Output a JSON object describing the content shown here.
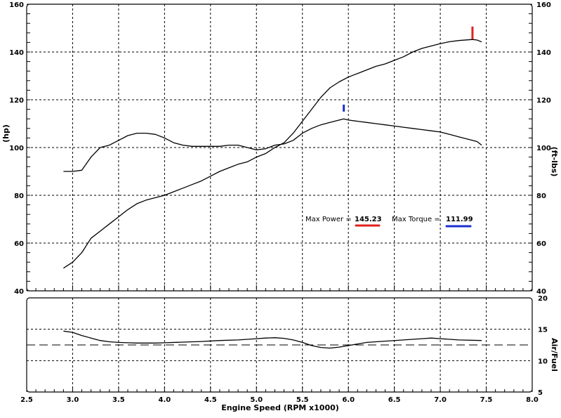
{
  "chart_data": [
    {
      "type": "line",
      "panel": "power-torque",
      "xlabel": "Engine Speed (RPM x1000)",
      "ylabel_left": "(hp)",
      "ylabel_right": "(ft-lbs)",
      "xlim": [
        2.5,
        8.0
      ],
      "ylim": [
        40,
        160
      ],
      "x_ticks": [
        "2.5",
        "3.0",
        "3.5",
        "4.0",
        "4.5",
        "5.0",
        "5.5",
        "6.0",
        "6.5",
        "7.0",
        "7.5",
        "8.0"
      ],
      "y_ticks_left": [
        "40",
        "60",
        "80",
        "100",
        "120",
        "140",
        "160"
      ],
      "y_ticks_right": [
        "40",
        "60",
        "80",
        "100",
        "120",
        "140",
        "160"
      ],
      "grid": true,
      "series": [
        {
          "key": "power",
          "units": "hp",
          "color": "#000000",
          "points": [
            [
              2.9,
              49.5
            ],
            [
              3.0,
              52
            ],
            [
              3.1,
              56
            ],
            [
              3.2,
              62
            ],
            [
              3.3,
              65
            ],
            [
              3.4,
              68
            ],
            [
              3.5,
              71
            ],
            [
              3.6,
              74
            ],
            [
              3.7,
              76.5
            ],
            [
              3.8,
              78
            ],
            [
              3.9,
              79
            ],
            [
              4.0,
              80
            ],
            [
              4.1,
              81.5
            ],
            [
              4.2,
              83
            ],
            [
              4.3,
              84.5
            ],
            [
              4.4,
              86
            ],
            [
              4.5,
              88
            ],
            [
              4.6,
              90
            ],
            [
              4.7,
              91.5
            ],
            [
              4.8,
              93
            ],
            [
              4.9,
              94
            ],
            [
              5.0,
              96
            ],
            [
              5.1,
              97.5
            ],
            [
              5.2,
              100
            ],
            [
              5.3,
              102
            ],
            [
              5.4,
              106
            ],
            [
              5.5,
              111
            ],
            [
              5.6,
              116
            ],
            [
              5.7,
              121
            ],
            [
              5.8,
              125
            ],
            [
              5.9,
              127.5
            ],
            [
              6.0,
              129.5
            ],
            [
              6.1,
              131
            ],
            [
              6.2,
              132.5
            ],
            [
              6.3,
              134
            ],
            [
              6.4,
              135
            ],
            [
              6.5,
              136.5
            ],
            [
              6.6,
              138
            ],
            [
              6.7,
              140
            ],
            [
              6.8,
              141.5
            ],
            [
              6.9,
              142.5
            ],
            [
              7.0,
              143.5
            ],
            [
              7.1,
              144.3
            ],
            [
              7.2,
              144.8
            ],
            [
              7.3,
              145.1
            ],
            [
              7.35,
              145.23
            ],
            [
              7.4,
              145
            ],
            [
              7.45,
              144.2
            ]
          ]
        },
        {
          "key": "torque",
          "units": "ft-lbs",
          "color": "#000000",
          "points": [
            [
              2.9,
              90
            ],
            [
              3.0,
              90
            ],
            [
              3.1,
              90.5
            ],
            [
              3.2,
              96
            ],
            [
              3.3,
              100
            ],
            [
              3.4,
              101
            ],
            [
              3.5,
              103
            ],
            [
              3.6,
              105
            ],
            [
              3.7,
              106
            ],
            [
              3.8,
              106
            ],
            [
              3.9,
              105.5
            ],
            [
              4.0,
              104
            ],
            [
              4.1,
              102
            ],
            [
              4.2,
              101
            ],
            [
              4.3,
              100.5
            ],
            [
              4.4,
              100.5
            ],
            [
              4.5,
              100.5
            ],
            [
              4.6,
              100.5
            ],
            [
              4.7,
              101
            ],
            [
              4.8,
              101
            ],
            [
              4.9,
              100
            ],
            [
              5.0,
              99
            ],
            [
              5.1,
              99.5
            ],
            [
              5.2,
              101
            ],
            [
              5.3,
              101.5
            ],
            [
              5.4,
              103
            ],
            [
              5.5,
              106
            ],
            [
              5.6,
              108
            ],
            [
              5.7,
              109.5
            ],
            [
              5.8,
              110.5
            ],
            [
              5.9,
              111.5
            ],
            [
              5.95,
              111.99
            ],
            [
              6.0,
              111.5
            ],
            [
              6.1,
              111
            ],
            [
              6.2,
              110.5
            ],
            [
              6.3,
              110
            ],
            [
              6.4,
              109.5
            ],
            [
              6.5,
              109
            ],
            [
              6.6,
              108.5
            ],
            [
              6.7,
              108
            ],
            [
              6.8,
              107.5
            ],
            [
              6.9,
              107
            ],
            [
              7.0,
              106.5
            ],
            [
              7.1,
              105.5
            ],
            [
              7.2,
              104.5
            ],
            [
              7.3,
              103.5
            ],
            [
              7.4,
              102.5
            ],
            [
              7.45,
              101
            ]
          ]
        }
      ],
      "markers": [
        {
          "key": "power-peak",
          "x": 7.35,
          "y": 148,
          "color": "#e02020"
        },
        {
          "key": "torque-peak",
          "x": 5.95,
          "y": 116.5,
          "color": "#1a2fd0"
        }
      ],
      "annotations": {
        "max_power_label": "Max Power = ",
        "max_power_value": "145.23",
        "max_torque_label": "Max Torque = ",
        "max_torque_value": "111.99",
        "power_color": "#e02020",
        "torque_color": "#1a2fd0"
      }
    },
    {
      "type": "line",
      "panel": "air-fuel",
      "ylabel_right": "Air/Fuel",
      "xlim": [
        2.5,
        8.0
      ],
      "ylim": [
        5,
        20
      ],
      "y_ticks_right": [
        "5",
        "10",
        "15",
        "20"
      ],
      "grid": true,
      "reference_line": {
        "y": 12.5,
        "style": "dashed"
      },
      "series": [
        {
          "key": "afr",
          "color": "#000000",
          "points": [
            [
              2.9,
              14.7
            ],
            [
              3.0,
              14.5
            ],
            [
              3.1,
              14.0
            ],
            [
              3.2,
              13.6
            ],
            [
              3.3,
              13.2
            ],
            [
              3.4,
              13.0
            ],
            [
              3.5,
              12.9
            ],
            [
              3.6,
              12.85
            ],
            [
              3.7,
              12.8
            ],
            [
              3.8,
              12.8
            ],
            [
              3.9,
              12.8
            ],
            [
              4.0,
              12.85
            ],
            [
              4.2,
              12.95
            ],
            [
              4.4,
              13.05
            ],
            [
              4.6,
              13.2
            ],
            [
              4.8,
              13.3
            ],
            [
              5.0,
              13.5
            ],
            [
              5.1,
              13.6
            ],
            [
              5.2,
              13.65
            ],
            [
              5.3,
              13.55
            ],
            [
              5.4,
              13.3
            ],
            [
              5.5,
              12.9
            ],
            [
              5.6,
              12.4
            ],
            [
              5.7,
              12.1
            ],
            [
              5.8,
              12.0
            ],
            [
              5.9,
              12.15
            ],
            [
              6.0,
              12.4
            ],
            [
              6.2,
              12.9
            ],
            [
              6.4,
              13.1
            ],
            [
              6.6,
              13.3
            ],
            [
              6.8,
              13.5
            ],
            [
              6.9,
              13.6
            ],
            [
              7.0,
              13.5
            ],
            [
              7.2,
              13.3
            ],
            [
              7.45,
              13.2
            ]
          ]
        }
      ]
    }
  ]
}
